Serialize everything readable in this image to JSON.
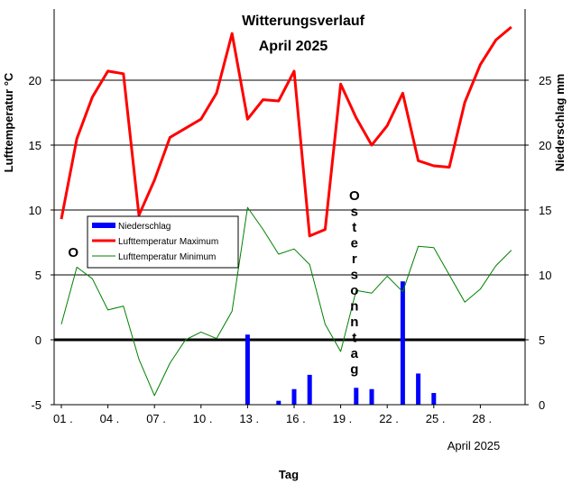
{
  "chart_data": {
    "type": "line",
    "title": "Witterungsverlauf",
    "subtitle": "April 2025",
    "xlabel": "Tag",
    "xlabel_note": "April 2025",
    "ylabel_left": "Lufttemperatur °C",
    "ylabel_right": "Niederschlag mm",
    "x_ticks": [
      "01 .",
      "04 .",
      "07 .",
      "10 .",
      "13 .",
      "16 .",
      "19 .",
      "22 .",
      "25 .",
      "28 ."
    ],
    "ylim_left": [
      -5,
      25
    ],
    "yticks_left": [
      "-5",
      "0",
      "5",
      "10",
      "15",
      "20"
    ],
    "ylim_right": [
      0,
      30
    ],
    "yticks_right": [
      "0",
      "5",
      "10",
      "15",
      "20",
      "25"
    ],
    "days": [
      1,
      2,
      3,
      4,
      5,
      6,
      7,
      8,
      9,
      10,
      11,
      12,
      13,
      14,
      15,
      16,
      17,
      18,
      19,
      20,
      21,
      22,
      23,
      24,
      25,
      26,
      27,
      28,
      29,
      30
    ],
    "series": [
      {
        "name": "Lufttemperatur Maximum",
        "color": "#ff0000",
        "axis": "left",
        "values": [
          9.3,
          15.5,
          18.7,
          20.7,
          20.5,
          9.6,
          12.3,
          15.6,
          16.3,
          17.0,
          19.0,
          23.6,
          17.0,
          18.5,
          18.4,
          20.7,
          8.0,
          8.5,
          19.7,
          17.1,
          15.0,
          16.5,
          19.0,
          13.8,
          13.4,
          13.3,
          18.3,
          21.2,
          23.1,
          24.1
        ]
      },
      {
        "name": "Lufttemperatur Minimum",
        "color": "#008000",
        "axis": "left",
        "values": [
          1.2,
          5.6,
          4.7,
          2.3,
          2.6,
          -1.5,
          -4.3,
          -1.8,
          0.0,
          0.6,
          0.1,
          2.2,
          10.2,
          8.5,
          6.6,
          7.0,
          5.8,
          1.2,
          -0.9,
          3.8,
          3.6,
          4.9,
          3.7,
          7.2,
          7.1,
          5.0,
          2.9,
          3.9,
          5.7,
          6.9
        ]
      },
      {
        "name": "Niederschlag",
        "color": "#0000ff",
        "axis": "right",
        "values": [
          0,
          0,
          0,
          0,
          0,
          0,
          0,
          0,
          0,
          0,
          0,
          0,
          5.4,
          0,
          0.3,
          1.2,
          2.3,
          0,
          0,
          1.3,
          1.2,
          0,
          9.5,
          2.4,
          0.9,
          0,
          0,
          0,
          0,
          0
        ]
      }
    ],
    "legend": "upper-left-inside",
    "annotations": [
      {
        "text": "O",
        "day": 2
      },
      {
        "text": "Ostersonntag",
        "day": 20
      }
    ],
    "grid": true
  }
}
